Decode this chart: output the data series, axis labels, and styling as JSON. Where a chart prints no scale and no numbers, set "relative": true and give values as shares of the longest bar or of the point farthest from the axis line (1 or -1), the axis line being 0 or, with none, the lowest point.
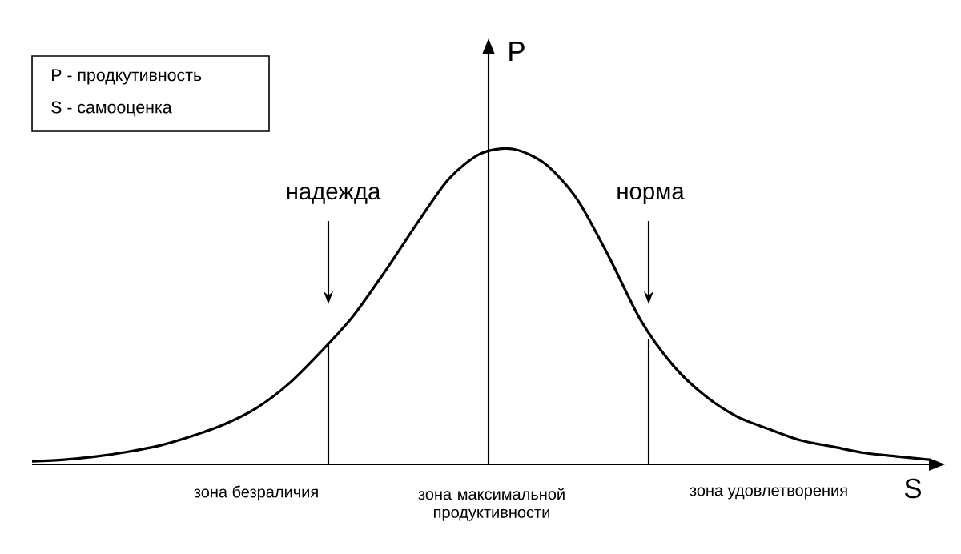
{
  "chart_data": {
    "type": "line",
    "relative": true,
    "xlabel": "S",
    "ylabel": "P",
    "categories": [
      null,
      null,
      null,
      null,
      null,
      null,
      null,
      null,
      null,
      null,
      null,
      null,
      null,
      null,
      null,
      null,
      null,
      null,
      null,
      null,
      null,
      null,
      null,
      null,
      null,
      null,
      null,
      null,
      null
    ],
    "series": [
      {
        "color": "#000000",
        "values": [
          0.01,
          0.015,
          0.025,
          0.04,
          0.06,
          0.09,
          0.127,
          0.178,
          0.254,
          0.355,
          0.467,
          0.609,
          0.761,
          0.904,
          0.985,
          1,
          0.954,
          0.843,
          0.66,
          0.457,
          0.315,
          0.218,
          0.152,
          0.112,
          0.076,
          0.056,
          0.036,
          0.025,
          0.015
        ]
      }
    ],
    "annotations": [
      "P - продкутивность",
      "S - самооценка",
      "надежда",
      "норма",
      "зона безраличия",
      "зона максимальной продуктивности",
      "зона удовлетворения"
    ]
  }
}
